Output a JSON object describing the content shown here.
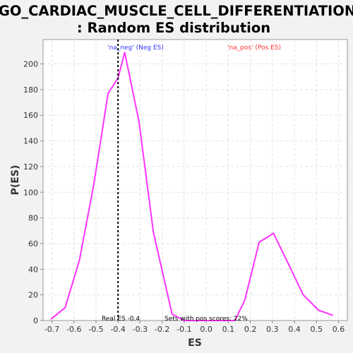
{
  "chart_data": {
    "type": "line",
    "title_line1": "GO_CARDIAC_MUSCLE_CELL_DIFFERENTIATION",
    "title_line2": ": Random ES distribution",
    "xlabel": "ES",
    "ylabel": "P(ES)",
    "xlim": [
      -0.74,
      0.64
    ],
    "ylim": [
      0,
      219
    ],
    "x_ticks": [
      -0.7,
      -0.6,
      -0.5,
      -0.4,
      -0.3,
      -0.2,
      -0.1,
      0.0,
      0.1,
      0.2,
      0.3,
      0.4,
      0.5,
      0.6
    ],
    "x_tick_labels": [
      "-0.7",
      "-0.6",
      "-0.5",
      "-0.4",
      "-0.3",
      "-0.2",
      "-0.1",
      "0.0",
      "0.1",
      "0.2",
      "0.3",
      "0.4",
      "0.5",
      "0.6"
    ],
    "y_ticks": [
      0,
      20,
      40,
      60,
      80,
      100,
      120,
      140,
      160,
      180,
      200
    ],
    "y_tick_labels": [
      "0",
      "20",
      "40",
      "60",
      "80",
      "100",
      "120",
      "140",
      "160",
      "180",
      "200"
    ],
    "grid": true,
    "series": [
      {
        "color": "#ff33ff",
        "x": [
          -0.705,
          -0.64,
          -0.575,
          -0.51,
          -0.445,
          -0.4,
          -0.37,
          -0.305,
          -0.24,
          -0.155,
          -0.1,
          0.13,
          0.175,
          0.24,
          0.305,
          0.37,
          0.44,
          0.51,
          0.575
        ],
        "y": [
          1,
          10,
          47,
          106,
          177,
          189,
          209,
          155,
          69,
          5,
          0,
          0,
          16,
          61,
          68,
          45,
          20,
          8,
          4
        ]
      }
    ],
    "real_es": {
      "value": -0.4,
      "label": "Real ES -0.4",
      "color": "#000000"
    },
    "annotations": {
      "neg_label": "'na_neg' (Neg ES)",
      "neg_color": "#3333ff",
      "pos_label": "'na_pos' (Pos ES)",
      "pos_color": "#ff3333",
      "pos_scores_label": "Sets with pos scores: 22%"
    }
  }
}
